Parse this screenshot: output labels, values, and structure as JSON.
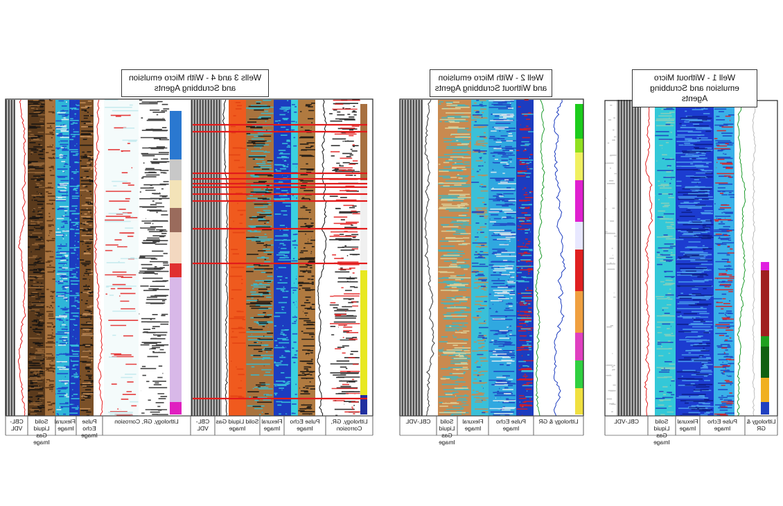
{
  "panels": [
    {
      "title": "Wells 3 and 4 - With Micro emulsion and Scrubbing Agents",
      "tracks": [
        "CBL-VDL",
        "Solid Liquid Gas Image",
        "Flexural Image",
        "Pulse Echo Image",
        "Lithology, GR, Corrosion",
        "CBL-VDL",
        "Solid Liquid Gas Image",
        "Flexural Image",
        "Pulse Echo Image",
        "Lithology, GR, Corrosion"
      ]
    },
    {
      "title": "Well 2 - With Micro emulsion and Without Scrubbing Agents",
      "tracks": [
        "CBL-VDL",
        "Solid Liquid Gas Image",
        "Flexural Image",
        "Pulse Echo Image",
        "Lithology & GR"
      ]
    },
    {
      "title": "Well 1 - Without Micro emulsion and Scrubbing Agents",
      "tracks": [
        "CBL-VDL",
        "Solid Liquid Gas Image",
        "Flexural Image",
        "Pulse Echo Image",
        "Lithology & GR"
      ]
    }
  ]
}
